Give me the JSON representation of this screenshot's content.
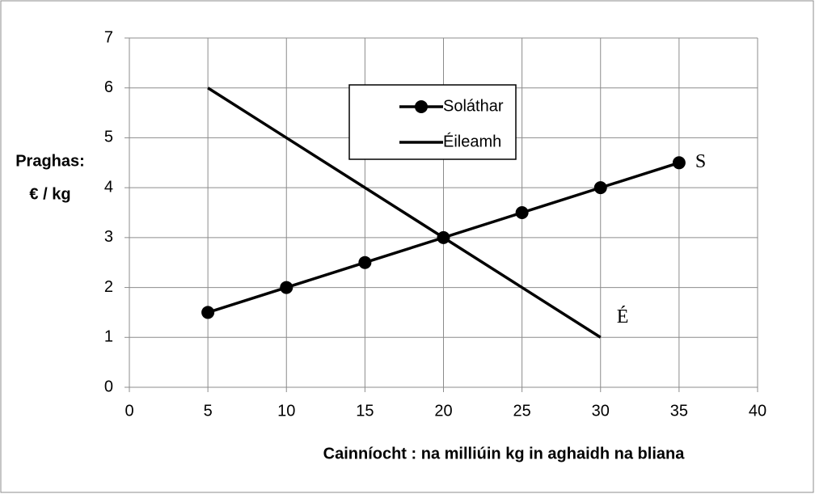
{
  "chart_data": {
    "type": "line",
    "series": [
      {
        "name": "Soláthar",
        "color": "#000000",
        "marker": true,
        "x": [
          5,
          10,
          15,
          20,
          25,
          30,
          35
        ],
        "values": [
          1.5,
          2,
          2.5,
          3,
          3.5,
          4,
          4.5
        ]
      },
      {
        "name": "Éileamh",
        "color": "#000000",
        "marker": false,
        "x": [
          5,
          10,
          15,
          20,
          25,
          30
        ],
        "values": [
          6,
          5,
          4,
          3,
          2,
          1
        ]
      }
    ],
    "annotations": [
      "S",
      "É"
    ],
    "xlabel": "Cainníocht : na milliúin kg in aghaidh na bliana",
    "ylabel": [
      "Praghas:",
      "€ / kg"
    ],
    "xlim": [
      0,
      40
    ],
    "xticks": [
      0,
      5,
      10,
      15,
      20,
      25,
      30,
      35,
      40
    ],
    "ylim": [
      0,
      7
    ],
    "yticks": [
      0,
      1,
      2,
      3,
      4,
      5,
      6,
      7
    ],
    "grid": true
  }
}
